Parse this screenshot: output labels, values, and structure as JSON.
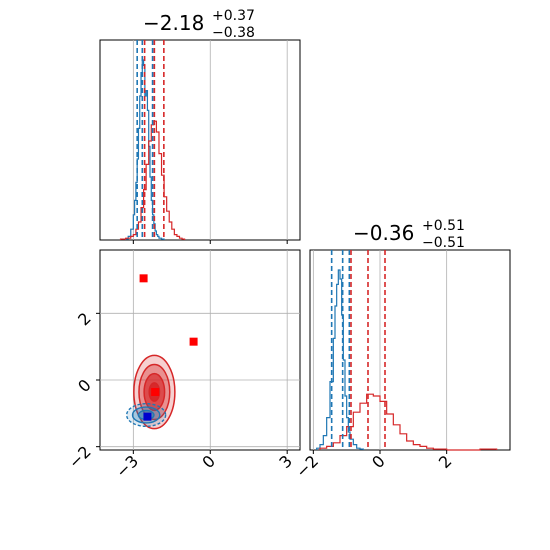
{
  "colors": {
    "blue": "#1f77b4",
    "red": "#d62728",
    "marker_red": "#ff0000",
    "marker_blue": "#0000cd",
    "grid": "#b0b0b0"
  },
  "chart_data": {
    "type": "corner",
    "grid": true,
    "parameters": [
      {
        "title": {
          "value": "−2.18",
          "plus": "+0.37",
          "minus": "−0.38"
        },
        "range": [
          -4.3,
          3.5
        ],
        "ticks": [
          -3,
          0,
          3
        ],
        "tick_labels": [
          "−3",
          "0",
          "3"
        ]
      },
      {
        "title": {
          "value": "−0.36",
          "plus": "+0.51",
          "minus": "−0.51"
        },
        "range": [
          -2.1,
          3.9
        ],
        "ticks": [
          -2,
          0,
          2
        ],
        "tick_labels": [
          "−2",
          "0",
          "2"
        ]
      }
    ],
    "series": [
      {
        "color": "#1f77b4",
        "quantiles_p1": [
          -2.85,
          -2.65,
          -2.25
        ],
        "quantiles_p2": [
          -1.45,
          -1.12,
          -0.92
        ],
        "hist_p1": {
          "bins_x": [
            -3.3,
            -3.2,
            -3.1,
            -3.0,
            -2.95,
            -2.9,
            -2.85,
            -2.8,
            -2.75,
            -2.7,
            -2.65,
            -2.6,
            -2.55,
            -2.5,
            -2.45,
            -2.4,
            -2.35,
            -2.3,
            -2.25,
            -2.2,
            -2.15,
            -2.1,
            -2.05,
            -2.0,
            -1.9,
            -1.8
          ],
          "counts": [
            0.005,
            0.02,
            0.06,
            0.14,
            0.22,
            0.32,
            0.45,
            0.62,
            0.8,
            0.93,
            1.0,
            0.97,
            0.8,
            0.83,
            0.72,
            0.52,
            0.35,
            0.22,
            0.14,
            0.09,
            0.05,
            0.03,
            0.02,
            0.01,
            0.005,
            0.0
          ]
        },
        "hist_p2": {
          "bins_x": [
            -1.9,
            -1.8,
            -1.7,
            -1.6,
            -1.5,
            -1.4,
            -1.35,
            -1.3,
            -1.25,
            -1.2,
            -1.15,
            -1.1,
            -1.05,
            -1.0,
            -0.95,
            -0.9,
            -0.8,
            -0.7,
            -0.6,
            -0.5
          ],
          "counts": [
            0.01,
            0.03,
            0.08,
            0.18,
            0.38,
            0.62,
            0.8,
            0.92,
            1.0,
            0.95,
            0.75,
            0.5,
            0.3,
            0.18,
            0.1,
            0.06,
            0.03,
            0.01,
            0.005,
            0.0
          ]
        },
        "contour_center": [
          -2.5,
          -1.05
        ],
        "contour_sigma": [
          0.38,
          0.17
        ]
      },
      {
        "color": "#d62728",
        "quantiles_p1": [
          -2.56,
          -2.18,
          -1.81
        ],
        "quantiles_p2": [
          -0.87,
          -0.36,
          0.15
        ],
        "hist_p1": {
          "bins_x": [
            -3.5,
            -3.3,
            -3.1,
            -3.0,
            -2.9,
            -2.8,
            -2.7,
            -2.6,
            -2.5,
            -2.4,
            -2.3,
            -2.2,
            -2.1,
            -2.0,
            -1.9,
            -1.8,
            -1.7,
            -1.6,
            -1.5,
            -1.4,
            -1.3,
            -1.2,
            -1.1,
            -1.0
          ],
          "counts": [
            0.005,
            0.01,
            0.02,
            0.03,
            0.06,
            0.1,
            0.18,
            0.28,
            0.42,
            0.55,
            0.64,
            0.66,
            0.6,
            0.48,
            0.36,
            0.24,
            0.16,
            0.1,
            0.06,
            0.03,
            0.02,
            0.01,
            0.005,
            0.0
          ]
        },
        "hist_p2": {
          "bins_x": [
            -1.8,
            -1.6,
            -1.4,
            -1.2,
            -1.0,
            -0.8,
            -0.6,
            -0.4,
            -0.2,
            0.0,
            0.2,
            0.4,
            0.6,
            0.8,
            1.0,
            1.2,
            1.4,
            1.6,
            1.8,
            2.0,
            2.5,
            3.0,
            3.5
          ],
          "counts": [
            0.01,
            0.02,
            0.04,
            0.08,
            0.13,
            0.21,
            0.26,
            0.31,
            0.3,
            0.27,
            0.2,
            0.14,
            0.09,
            0.05,
            0.03,
            0.02,
            0.01,
            0.005,
            0.005,
            0.0,
            0.0,
            0.005,
            0.0
          ]
        },
        "contour_center": [
          -2.18,
          -0.36
        ],
        "contour_sigma": [
          0.4,
          0.55
        ]
      }
    ],
    "markers": [
      {
        "x": -2.15,
        "y": -0.36,
        "color": "#ff0000"
      },
      {
        "x": -2.6,
        "y": 3.05,
        "color": "#ff0000"
      },
      {
        "x": -0.65,
        "y": 1.15,
        "color": "#ff0000"
      },
      {
        "x": -2.45,
        "y": -1.1,
        "color": "#0000cd"
      }
    ]
  }
}
